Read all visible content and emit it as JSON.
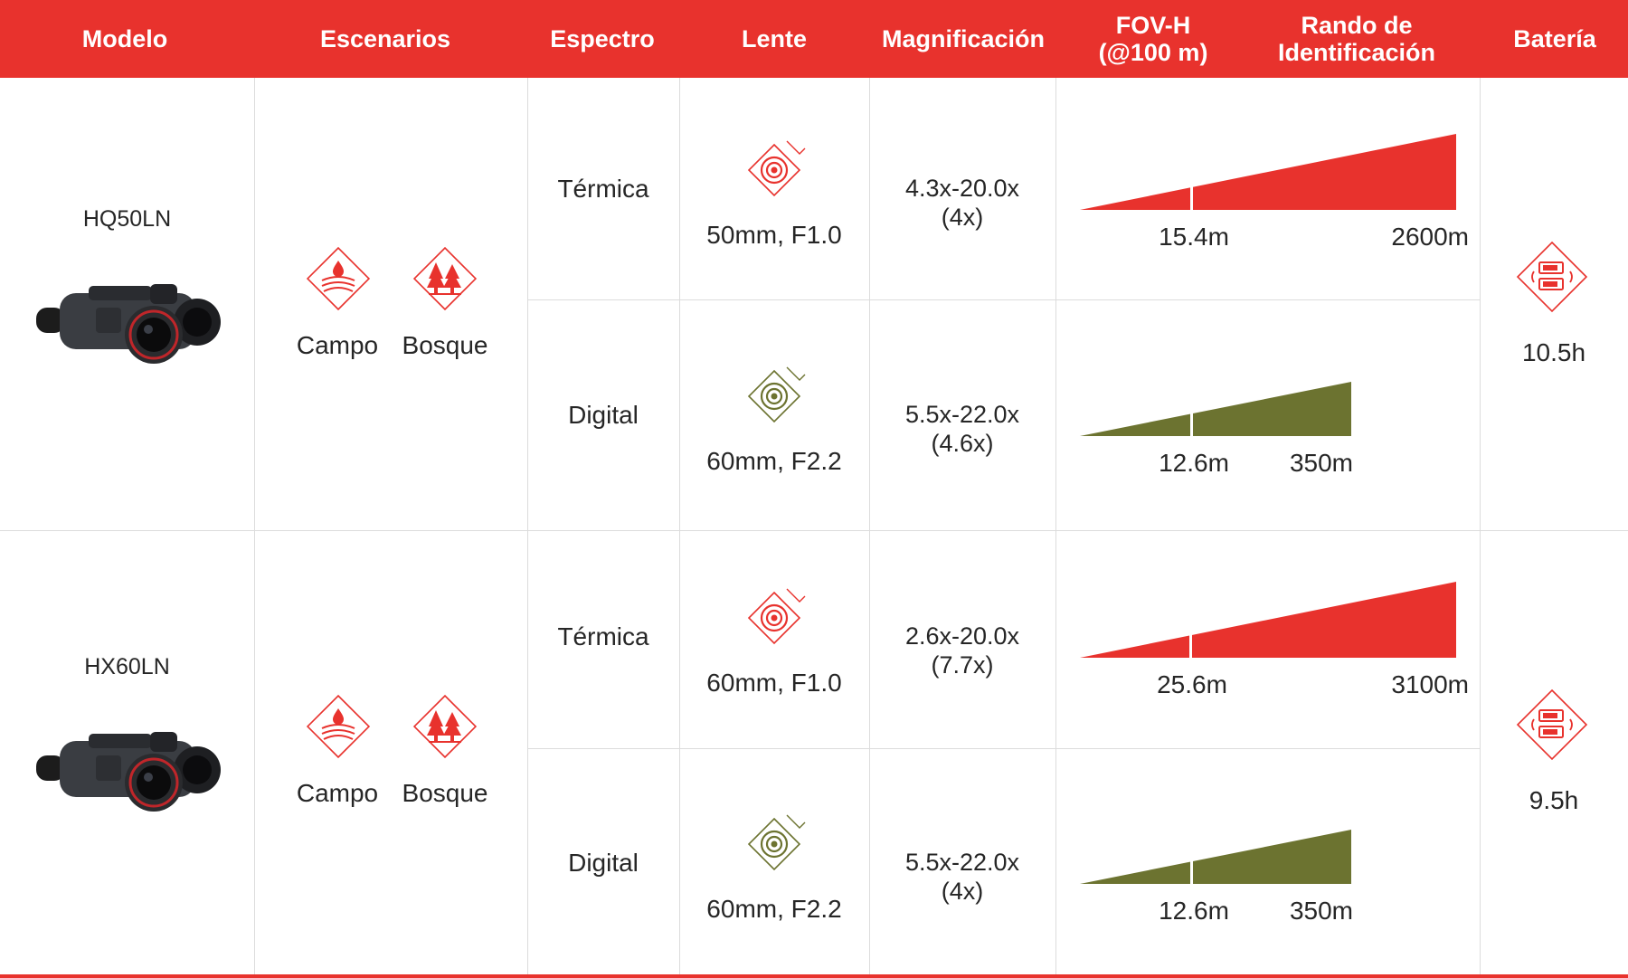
{
  "header": {
    "modelo": "Modelo",
    "escenarios": "Escenarios",
    "espectro": "Espectro",
    "lente": "Lente",
    "magnificacion": "Magnificación",
    "fov": "FOV-H\n(@100 m)",
    "rango": "Rando de\nIdentificación",
    "bateria": "Batería"
  },
  "colors": {
    "thermal": "#e8322d",
    "digital": "#6c7330",
    "header_bg": "#e8322d"
  },
  "models": [
    {
      "name": "HQ50LN",
      "scenarios": [
        "Campo",
        "Bosque"
      ],
      "battery": "10.5h",
      "battery_icon": "battery-swap-icon",
      "rows": [
        {
          "spectrum": "Térmica",
          "lens": "50mm, F1.0",
          "lens_icon": "thermal-lens-icon",
          "mag": "4.3x-20.0x",
          "mag_sub": "(4x)",
          "fov": "15.4m",
          "range": "2600m",
          "range_value": 2600
        },
        {
          "spectrum": "Digital",
          "lens": "60mm, F2.2",
          "lens_icon": "digital-lens-icon",
          "mag": "5.5x-22.0x",
          "mag_sub": "(4.6x)",
          "fov": "12.6m",
          "range": "350m",
          "range_value": 350
        }
      ]
    },
    {
      "name": "HX60LN",
      "scenarios": [
        "Campo",
        "Bosque"
      ],
      "battery": "9.5h",
      "battery_icon": "battery-swap-icon",
      "rows": [
        {
          "spectrum": "Térmica",
          "lens": "60mm, F1.0",
          "lens_icon": "thermal-lens-icon",
          "mag": "2.6x-20.0x",
          "mag_sub": "(7.7x)",
          "fov": "25.6m",
          "range": "3100m",
          "range_value": 3100
        },
        {
          "spectrum": "Digital",
          "lens": "60mm, F2.2",
          "lens_icon": "digital-lens-icon",
          "mag": "5.5x-22.0x",
          "mag_sub": "(4x)",
          "fov": "12.6m",
          "range": "350m",
          "range_value": 350
        }
      ]
    }
  ]
}
